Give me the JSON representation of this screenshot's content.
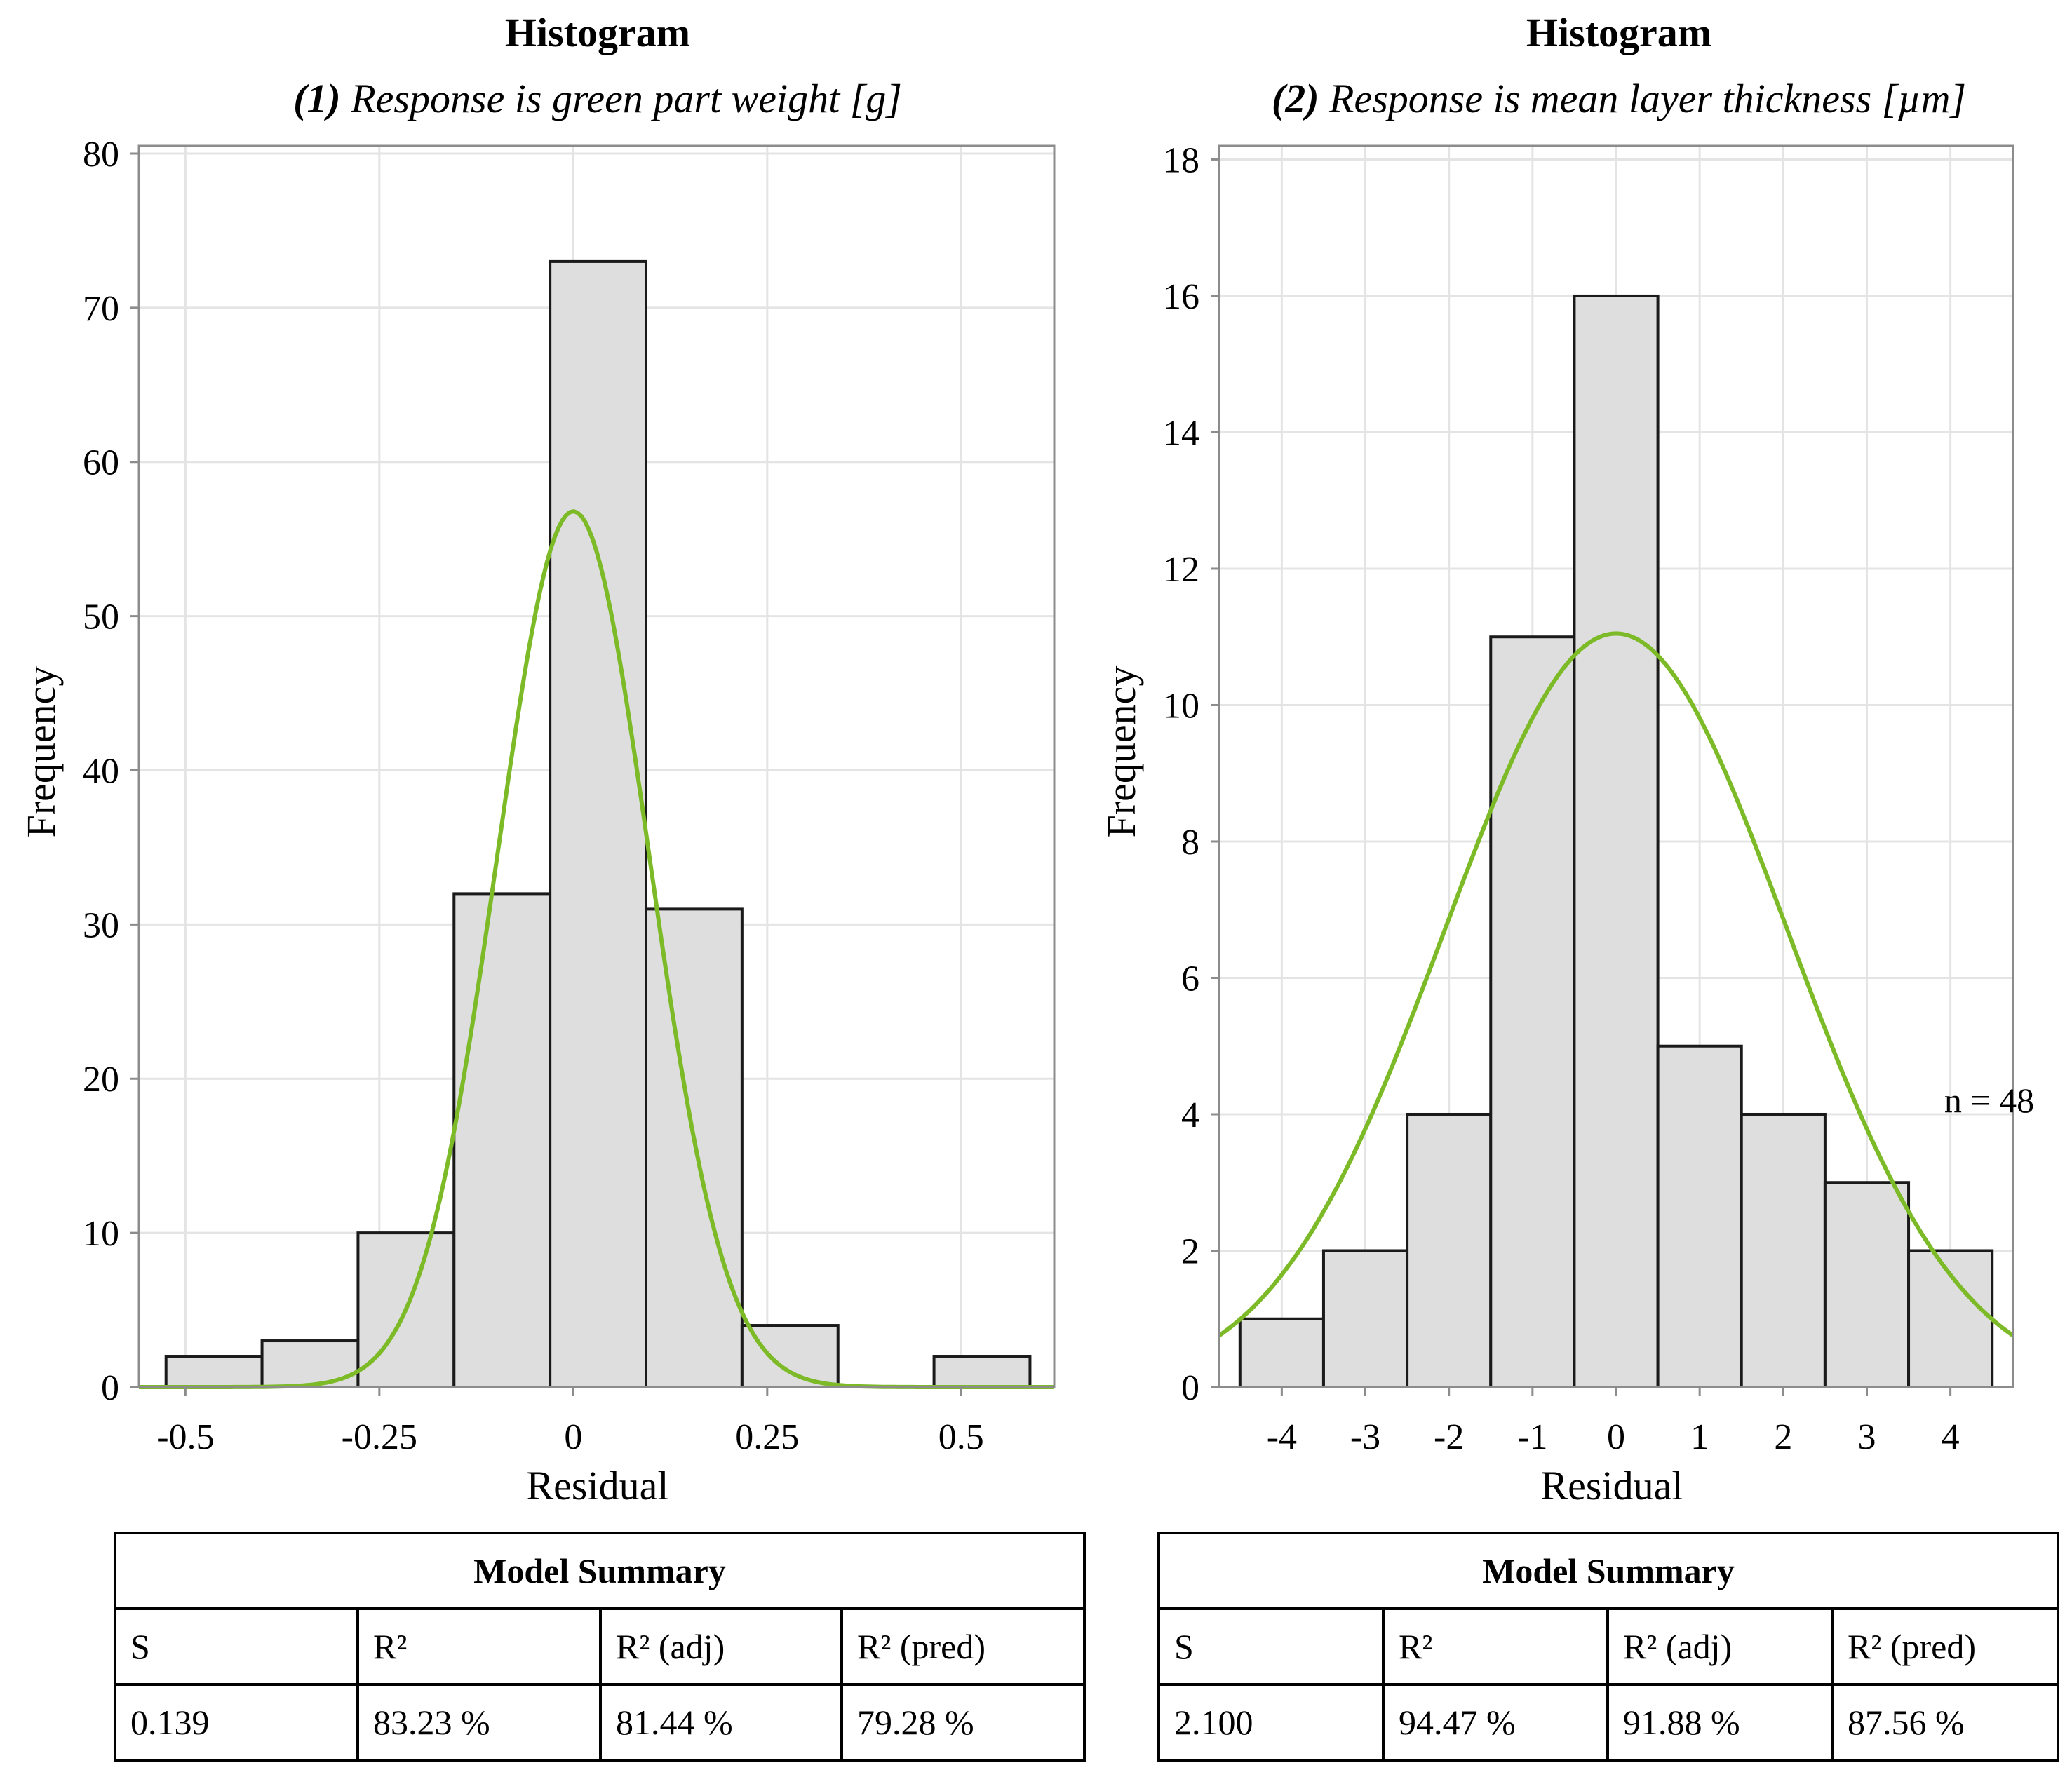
{
  "chart_data": [
    {
      "type": "bar",
      "title": "Histogram",
      "subtitle_num": "(1)",
      "subtitle_text": " Response is green part weight [g]",
      "xlabel": "Residual",
      "ylabel": "Frequency",
      "xlim": [
        -0.56,
        0.62
      ],
      "ylim": [
        0,
        80.5
      ],
      "xticks": [
        -0.5,
        -0.25,
        0,
        0.25,
        0.5
      ],
      "xtick_labels": [
        "-0.5",
        "-0.25",
        "0",
        "0.25",
        "0.5"
      ],
      "yticks": [
        0,
        10,
        20,
        30,
        40,
        50,
        60,
        70,
        80
      ],
      "ytick_labels": [
        "0",
        "10",
        "20",
        "30",
        "40",
        "50",
        "60",
        "70",
        "80"
      ],
      "bin_edges": [
        -0.525,
        -0.40125,
        -0.2775,
        -0.15375,
        -0.03,
        0.09375,
        0.2175,
        0.34125,
        0.465,
        0.58875
      ],
      "values": [
        2,
        3,
        10,
        32,
        73,
        31,
        4,
        0,
        2
      ],
      "fit_curve": {
        "mean": 0,
        "peak": 56.8,
        "sd": 0.098
      },
      "annotation": "",
      "summary": {
        "title": "Model Summary",
        "headers": [
          "S",
          "R²",
          "R² (adj)",
          "R² (pred)"
        ],
        "values": [
          "0.139",
          "83.23 %",
          "81.44 %",
          "79.28 %"
        ]
      }
    },
    {
      "type": "bar",
      "title": "Histogram",
      "subtitle_num": "(2)",
      "subtitle_text": " Response is mean layer thickness [µm]",
      "xlabel": "Residual",
      "ylabel": "Frequency",
      "xlim": [
        -4.75,
        4.75
      ],
      "ylim": [
        0,
        18.2
      ],
      "xticks": [
        -4,
        -3,
        -2,
        -1,
        0,
        1,
        2,
        3,
        4
      ],
      "xtick_labels": [
        "-4",
        "-3",
        "-2",
        "-1",
        "0",
        "1",
        "2",
        "3",
        "4"
      ],
      "yticks": [
        0,
        2,
        4,
        6,
        8,
        10,
        12,
        14,
        16,
        18
      ],
      "ytick_labels": [
        "0",
        "2",
        "4",
        "6",
        "8",
        "10",
        "12",
        "14",
        "16",
        "18"
      ],
      "bin_edges": [
        -4.5,
        -3.5,
        -2.5,
        -1.5,
        -0.5,
        0.5,
        1.5,
        2.5,
        3.5,
        4.5
      ],
      "values": [
        1,
        2,
        4,
        11,
        16,
        5,
        4,
        3,
        2
      ],
      "fit_curve": {
        "mean": 0,
        "peak": 11.05,
        "sd": 2.05
      },
      "annotation": "n = 48",
      "summary": {
        "title": "Model Summary",
        "headers": [
          "S",
          "R²",
          "R² (adj)",
          "R² (pred)"
        ],
        "values": [
          "2.100",
          "94.47 %",
          "91.88 %",
          "87.56 %"
        ]
      }
    }
  ],
  "colors": {
    "bar_fill": "#dedede",
    "bar_stroke": "#1a1a1a",
    "grid": "#e4e4e4",
    "frame": "#8c8c8c",
    "curve": "#7cba27"
  }
}
